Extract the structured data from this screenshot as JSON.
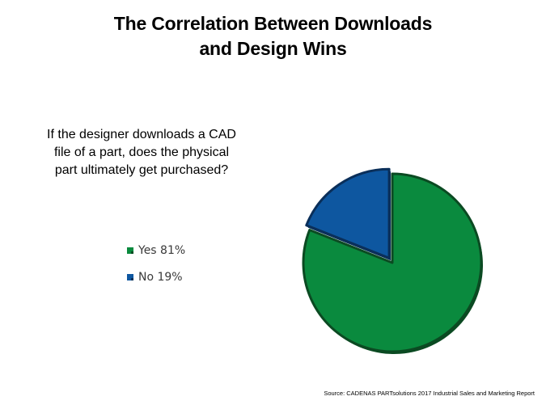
{
  "title_line1": "The Correlation Between Downloads",
  "title_line2": "and Design Wins",
  "question_line1": "If the designer downloads a CAD",
  "question_line2": "file of a part, does the physical",
  "question_line3": "part ultimately get purchased?",
  "legend": [
    {
      "label": "Yes 81%",
      "color": "#0a8a3e"
    },
    {
      "label": "No 19%",
      "color": "#0e57a0"
    }
  ],
  "source": "Source: CADENAS PARTsolutions 2017 Industrial Sales and Marketing Report",
  "chart_data": {
    "type": "pie",
    "title": "The Correlation Between Downloads and Design Wins",
    "subtitle": "If the designer downloads a CAD file of a part, does the physical part ultimately get purchased?",
    "categories": [
      "Yes",
      "No"
    ],
    "values": [
      81,
      19
    ],
    "colors": [
      "#0a8a3e",
      "#0e57a0"
    ],
    "edge_colors": [
      "#0b4a22",
      "#0a2f5a"
    ],
    "legend_placement": "left",
    "exploded_slice": "No"
  }
}
